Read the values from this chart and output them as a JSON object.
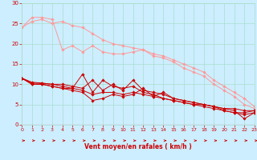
{
  "bg_color": "#cceeff",
  "grid_color": "#aaddcc",
  "line_color_dark": "#cc0000",
  "line_color_light": "#ff9999",
  "xlabel": "Vent moyen/en rafales ( km/h )",
  "xlabel_color": "#cc0000",
  "tick_color": "#cc0000",
  "xlim": [
    0,
    23
  ],
  "ylim": [
    0,
    30
  ],
  "yticks": [
    0,
    5,
    10,
    15,
    20,
    25,
    30
  ],
  "xticks": [
    0,
    1,
    2,
    3,
    4,
    5,
    6,
    7,
    8,
    9,
    10,
    11,
    12,
    13,
    14,
    15,
    16,
    17,
    18,
    19,
    20,
    21,
    22,
    23
  ],
  "series_dark": [
    [
      0,
      11.5,
      1,
      10.5,
      2,
      10.3,
      3,
      10.0,
      4,
      10.0,
      5,
      9.5,
      6,
      9.0,
      7,
      11.0,
      8,
      8.5,
      9,
      10.0,
      10,
      8.5,
      11,
      11.0,
      12,
      8.5,
      13,
      8.0,
      14,
      7.5,
      15,
      6.5,
      16,
      6.0,
      17,
      5.5,
      18,
      5.0,
      19,
      4.5,
      20,
      4.0,
      21,
      3.5,
      22,
      1.5,
      23,
      3.0
    ],
    [
      0,
      11.5,
      1,
      10.3,
      2,
      10.2,
      3,
      10.0,
      4,
      9.5,
      5,
      9.0,
      6,
      12.5,
      7,
      8.0,
      8,
      11.0,
      9,
      9.5,
      10,
      9.0,
      11,
      9.5,
      12,
      8.0,
      13,
      7.5,
      14,
      6.5,
      15,
      6.0,
      16,
      5.5,
      17,
      5.0,
      18,
      5.0,
      19,
      4.5,
      20,
      3.5,
      21,
      3.0,
      22,
      3.0,
      23,
      3.5
    ],
    [
      0,
      11.5,
      1,
      10.0,
      2,
      10.0,
      3,
      9.5,
      4,
      9.0,
      5,
      8.5,
      6,
      8.0,
      7,
      6.0,
      8,
      6.5,
      9,
      7.5,
      10,
      7.0,
      11,
      7.5,
      12,
      9.0,
      13,
      7.0,
      14,
      8.0,
      15,
      6.5,
      16,
      6.0,
      17,
      5.5,
      18,
      5.0,
      19,
      4.5,
      20,
      4.0,
      21,
      4.0,
      22,
      3.5,
      23,
      3.5
    ],
    [
      0,
      11.5,
      1,
      10.0,
      2,
      10.0,
      3,
      9.5,
      4,
      9.0,
      5,
      9.0,
      6,
      8.5,
      7,
      7.5,
      8,
      8.0,
      9,
      8.0,
      10,
      7.5,
      11,
      8.0,
      12,
      7.5,
      13,
      7.0,
      14,
      6.5,
      15,
      6.0,
      16,
      5.5,
      17,
      5.0,
      18,
      4.5,
      19,
      4.0,
      20,
      3.5,
      21,
      3.0,
      22,
      2.5,
      23,
      3.0
    ]
  ],
  "series_light": [
    [
      0,
      24.0,
      1,
      26.5,
      2,
      26.5,
      3,
      26.0,
      4,
      18.5,
      5,
      19.5,
      6,
      18.0,
      7,
      19.5,
      8,
      18.0,
      9,
      17.5,
      10,
      17.5,
      11,
      18.0,
      12,
      18.5,
      13,
      17.0,
      14,
      16.5,
      15,
      15.5,
      16,
      14.0,
      17,
      13.0,
      18,
      12.0,
      19,
      10.0,
      20,
      8.5,
      21,
      7.0,
      22,
      5.0,
      23,
      4.0
    ],
    [
      0,
      24.0,
      1,
      25.5,
      2,
      26.0,
      3,
      25.0,
      4,
      25.5,
      5,
      24.5,
      6,
      24.0,
      7,
      22.5,
      8,
      21.0,
      9,
      20.0,
      10,
      19.5,
      11,
      19.0,
      12,
      18.5,
      13,
      17.5,
      14,
      17.0,
      15,
      16.0,
      16,
      15.0,
      17,
      14.0,
      18,
      13.0,
      19,
      11.0,
      20,
      9.5,
      21,
      8.0,
      22,
      6.5,
      23,
      4.5
    ]
  ],
  "wind_arrows": [
    0,
    1,
    2,
    3,
    4,
    5,
    6,
    7,
    8,
    9,
    10,
    11,
    12,
    13,
    14,
    15,
    16,
    17,
    18,
    19,
    20,
    21,
    22,
    23
  ]
}
